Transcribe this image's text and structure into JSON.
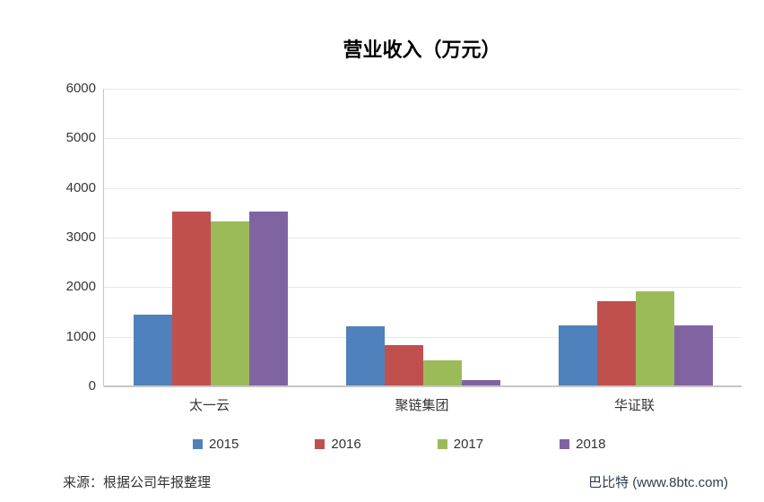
{
  "chart_data": {
    "type": "bar",
    "title": "营业收入（万元）",
    "categories": [
      "太一云",
      "聚链集团",
      "华证联"
    ],
    "series": [
      {
        "name": "2015",
        "color": "#4F81BD",
        "values": [
          1420,
          1200,
          1220
        ]
      },
      {
        "name": "2016",
        "color": "#C0504D",
        "values": [
          3500,
          820,
          1700
        ]
      },
      {
        "name": "2017",
        "color": "#9BBB59",
        "values": [
          3300,
          500,
          1900
        ]
      },
      {
        "name": "2018",
        "color": "#8064A2",
        "values": [
          3500,
          100,
          1220
        ]
      }
    ],
    "ylim": [
      0,
      6000
    ],
    "yticks": [
      0,
      1000,
      2000,
      3000,
      4000,
      5000,
      6000
    ],
    "xlabel": "",
    "ylabel": "",
    "grid": "horizontal",
    "legend_position": "bottom",
    "axis_color": "#c6c6c6",
    "gridline_color": "#e8e8e8"
  },
  "footer": {
    "source_note": "来源：根据公司年报整理",
    "credit": "巴比特 (www.8btc.com)"
  }
}
